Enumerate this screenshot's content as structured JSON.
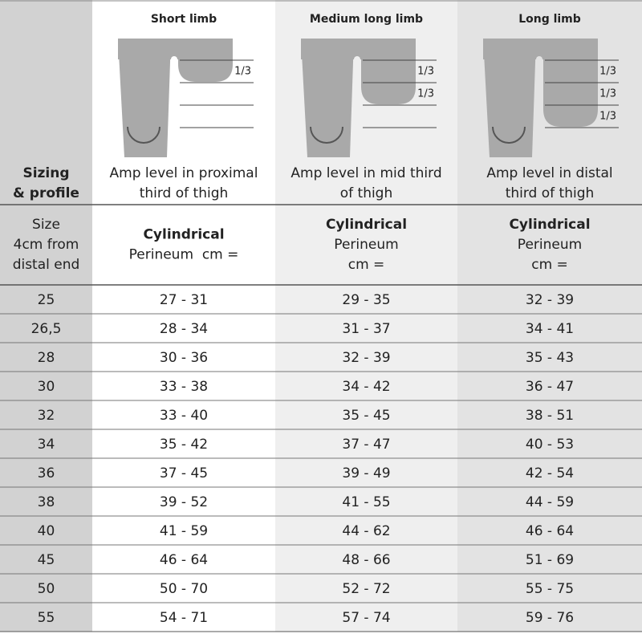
{
  "header": {
    "corner": [
      "Sizing",
      "& profile"
    ],
    "columns": [
      {
        "title": "Short limb",
        "fractions": [
          "1/3"
        ],
        "description": [
          "Amp level in proximal",
          "third of thigh"
        ]
      },
      {
        "title": "Medium long limb",
        "fractions": [
          "1/3",
          "1/3"
        ],
        "description": [
          "Amp level in mid third",
          "of thigh"
        ]
      },
      {
        "title": "Long limb",
        "fractions": [
          "1/3",
          "1/3",
          "1/3"
        ],
        "description": [
          "Amp level in distal",
          "third of thigh"
        ]
      }
    ]
  },
  "subheader": {
    "size_label": [
      "Size",
      "4cm from",
      "distal end"
    ],
    "columns": [
      {
        "profile": "Cylindrical",
        "unit": [
          "Perineum  cm ="
        ]
      },
      {
        "profile": "Cylindrical",
        "unit": [
          "Perineum",
          "cm ="
        ]
      },
      {
        "profile": "Cylindrical",
        "unit": [
          "Perineum",
          "cm ="
        ]
      }
    ]
  },
  "table": {
    "rows": [
      [
        "25",
        "27 - 31",
        "29 - 35",
        "32 - 39"
      ],
      [
        "26,5",
        "28 - 34",
        "31 - 37",
        "34 - 41"
      ],
      [
        "28",
        "30 - 36",
        "32 - 39",
        "35 - 43"
      ],
      [
        "30",
        "33 - 38",
        "34 - 42",
        "36 - 47"
      ],
      [
        "32",
        "33 - 40",
        "35 - 45",
        "38 - 51"
      ],
      [
        "34",
        "35 - 42",
        "37 - 47",
        "40 - 53"
      ],
      [
        "36",
        "37 - 45",
        "39 - 49",
        "42 - 54"
      ],
      [
        "38",
        "39 - 52",
        "41 - 55",
        "44 - 59"
      ],
      [
        "40",
        "41 - 59",
        "44 - 62",
        "46 - 64"
      ],
      [
        "45",
        "46 - 64",
        "48 - 66",
        "51 - 69"
      ],
      [
        "50",
        "50 - 70",
        "52 - 72",
        "55 - 75"
      ],
      [
        "55",
        "54 - 71",
        "57 - 74",
        "59 - 76"
      ]
    ]
  }
}
